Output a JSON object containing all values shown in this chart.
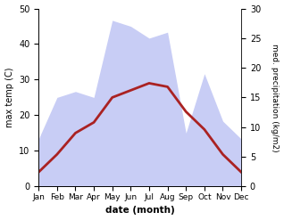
{
  "months": [
    "Jan",
    "Feb",
    "Mar",
    "Apr",
    "May",
    "Jun",
    "Jul",
    "Aug",
    "Sep",
    "Oct",
    "Nov",
    "Dec"
  ],
  "x": [
    1,
    2,
    3,
    4,
    5,
    6,
    7,
    8,
    9,
    10,
    11,
    12
  ],
  "max_temp_C": [
    4,
    9,
    15,
    18,
    25,
    27,
    29,
    28,
    21,
    16,
    9,
    4
  ],
  "precipitation_mm": [
    8,
    15,
    16,
    15,
    28,
    27,
    25,
    26,
    9,
    19,
    11,
    8
  ],
  "temp_color": "#aa2222",
  "precip_fill_color": "#c8cdf5",
  "ylabel_left": "max temp (C)",
  "ylabel_right": "med. precipitation (kg/m2)",
  "xlabel": "date (month)",
  "ylim_left": [
    0,
    50
  ],
  "ylim_right": [
    0,
    30
  ],
  "yticks_left": [
    0,
    10,
    20,
    30,
    40,
    50
  ],
  "yticks_right": [
    0,
    5,
    10,
    15,
    20,
    25,
    30
  ],
  "temp_lw": 2.0,
  "background_color": "#ffffff"
}
